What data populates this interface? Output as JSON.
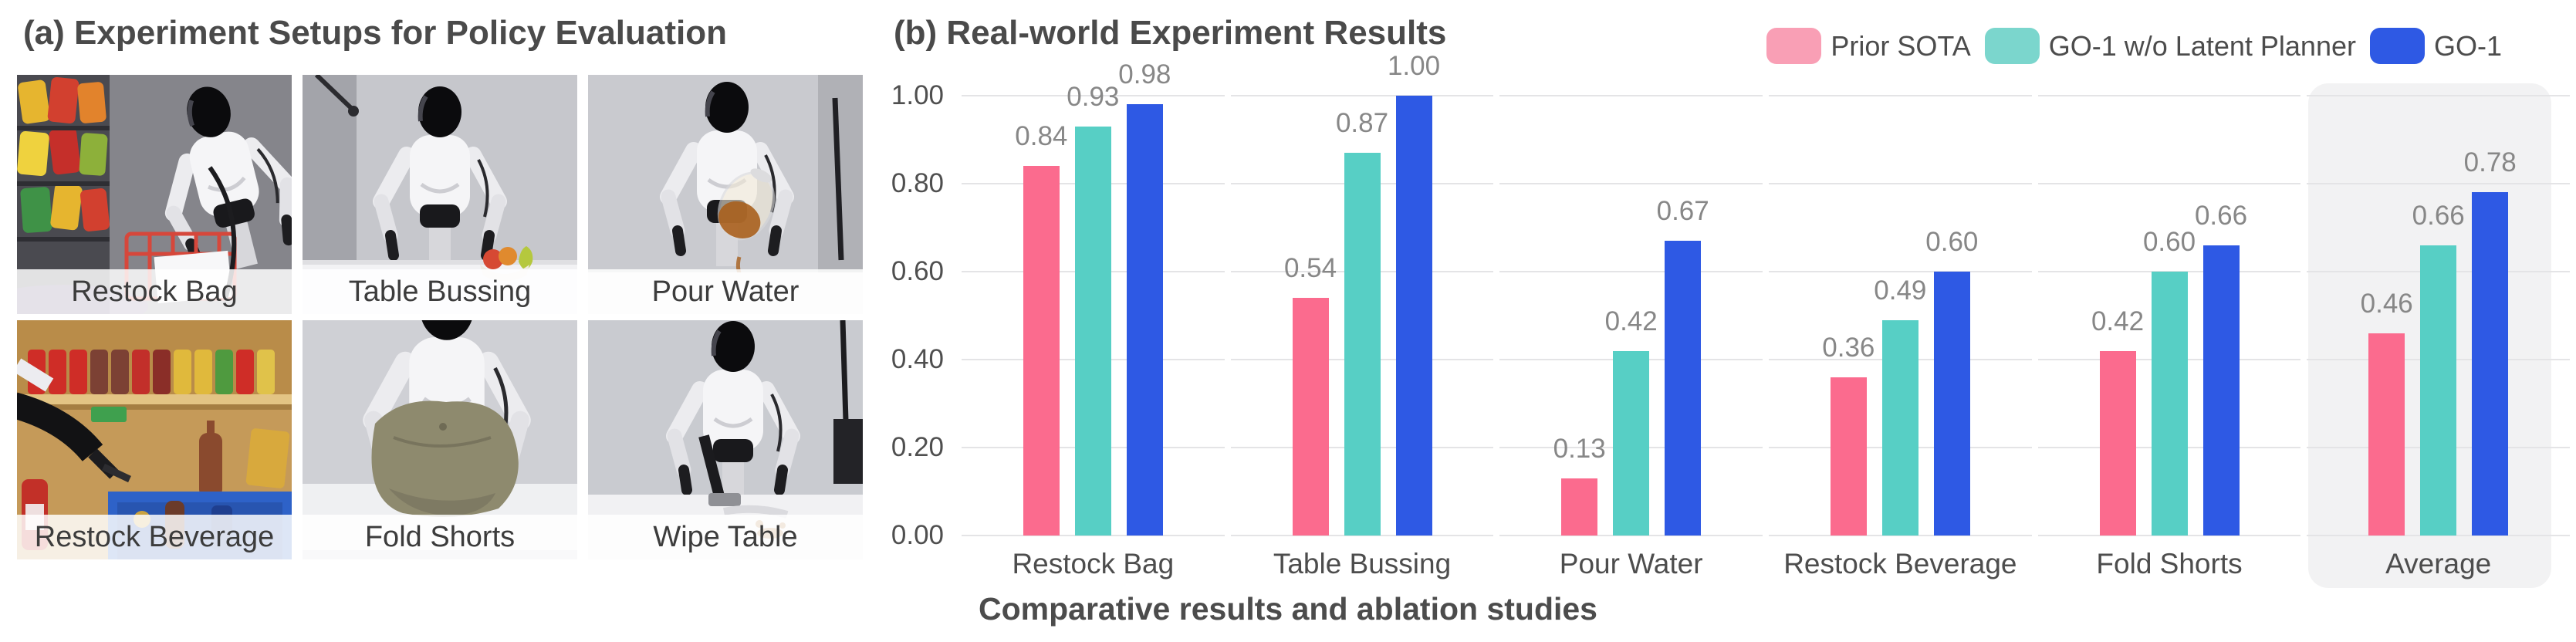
{
  "panel_a": {
    "title": "(a) Experiment Setups for Policy Evaluation",
    "photos": [
      {
        "label": "Restock Bag"
      },
      {
        "label": "Table Bussing"
      },
      {
        "label": "Pour Water"
      },
      {
        "label": "Restock Beverage"
      },
      {
        "label": "Fold Shorts"
      },
      {
        "label": "Wipe Table"
      }
    ]
  },
  "panel_b": {
    "title": "(b) Real-world Experiment Results",
    "caption": "Comparative results and ablation studies"
  },
  "legend": {
    "items": [
      {
        "label": "Prior SOTA",
        "swatch_color": "#F99FB5"
      },
      {
        "label": "GO-1 w/o Latent Planner",
        "swatch_color": "#7BD6CD"
      },
      {
        "label": "GO-1",
        "swatch_color": "#2E59E4"
      }
    ]
  },
  "colors": {
    "prior_sota": "#FB6B8E",
    "go1_wo_planner": "#57CFC5",
    "go1": "#2E59E4",
    "gridline": "#E4E4E6",
    "highlight": "#F2F2F3"
  },
  "chart_data": {
    "type": "bar",
    "title": "(b) Real-world Experiment Results",
    "categories": [
      "Restock Bag",
      "Table Bussing",
      "Pour Water",
      "Restock Beverage",
      "Fold Shorts",
      "Average"
    ],
    "series": [
      {
        "name": "Prior SOTA",
        "color": "#FB6B8E",
        "values": [
          0.84,
          0.54,
          0.13,
          0.36,
          0.42,
          0.46
        ]
      },
      {
        "name": "GO-1 w/o Latent Planner",
        "color": "#57CFC5",
        "values": [
          0.93,
          0.87,
          0.42,
          0.49,
          0.6,
          0.66
        ]
      },
      {
        "name": "GO-1",
        "color": "#2E59E4",
        "values": [
          0.98,
          1.0,
          0.67,
          0.6,
          0.66,
          0.78
        ]
      }
    ],
    "ylim": [
      0,
      1.0
    ],
    "yticks": [
      "1.00",
      "0.80",
      "0.60",
      "0.40",
      "0.20",
      "0.00"
    ],
    "grid": true,
    "legend_position": "top-right",
    "highlighted_category": "Average",
    "value_labels": true,
    "xlabel": "",
    "ylabel": "",
    "caption": "Comparative results and ablation studies"
  }
}
